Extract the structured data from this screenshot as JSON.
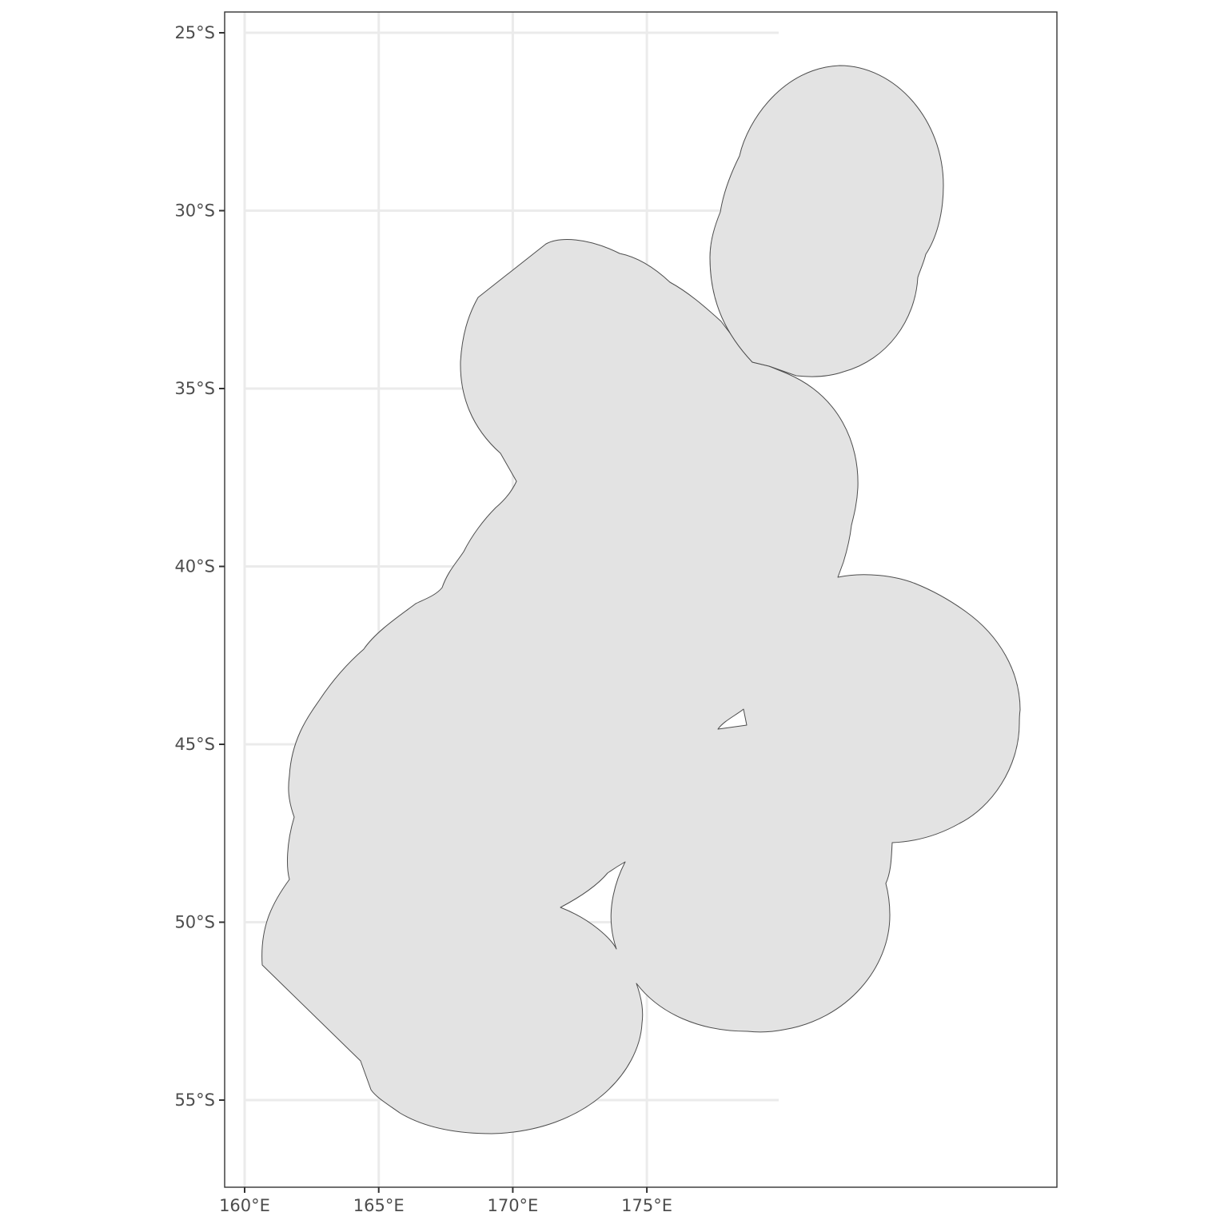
{
  "map": {
    "type": "polygon-map",
    "x_axis": {
      "ticks": [
        {
          "value": 160,
          "label": "160°E"
        },
        {
          "value": 165,
          "label": "165°E"
        },
        {
          "value": 170,
          "label": "170°E"
        },
        {
          "value": 175,
          "label": "175°E"
        }
      ]
    },
    "y_axis": {
      "ticks": [
        {
          "value": -25,
          "label": "25°S"
        },
        {
          "value": -30,
          "label": "30°S"
        },
        {
          "value": -35,
          "label": "35°S"
        },
        {
          "value": -40,
          "label": "40°S"
        },
        {
          "value": -45,
          "label": "45°S"
        },
        {
          "value": -50,
          "label": "50°S"
        },
        {
          "value": -55,
          "label": "55°S"
        }
      ]
    },
    "extent": {
      "lon": [
        159.27,
        190.3
      ],
      "lat": [
        -57.4,
        -24.42
      ]
    },
    "grid": true,
    "colors": {
      "fill": "#e3e3e3",
      "outline": "#4d4d4d",
      "grid": "#ebebeb",
      "panel_border": "#333333"
    }
  }
}
